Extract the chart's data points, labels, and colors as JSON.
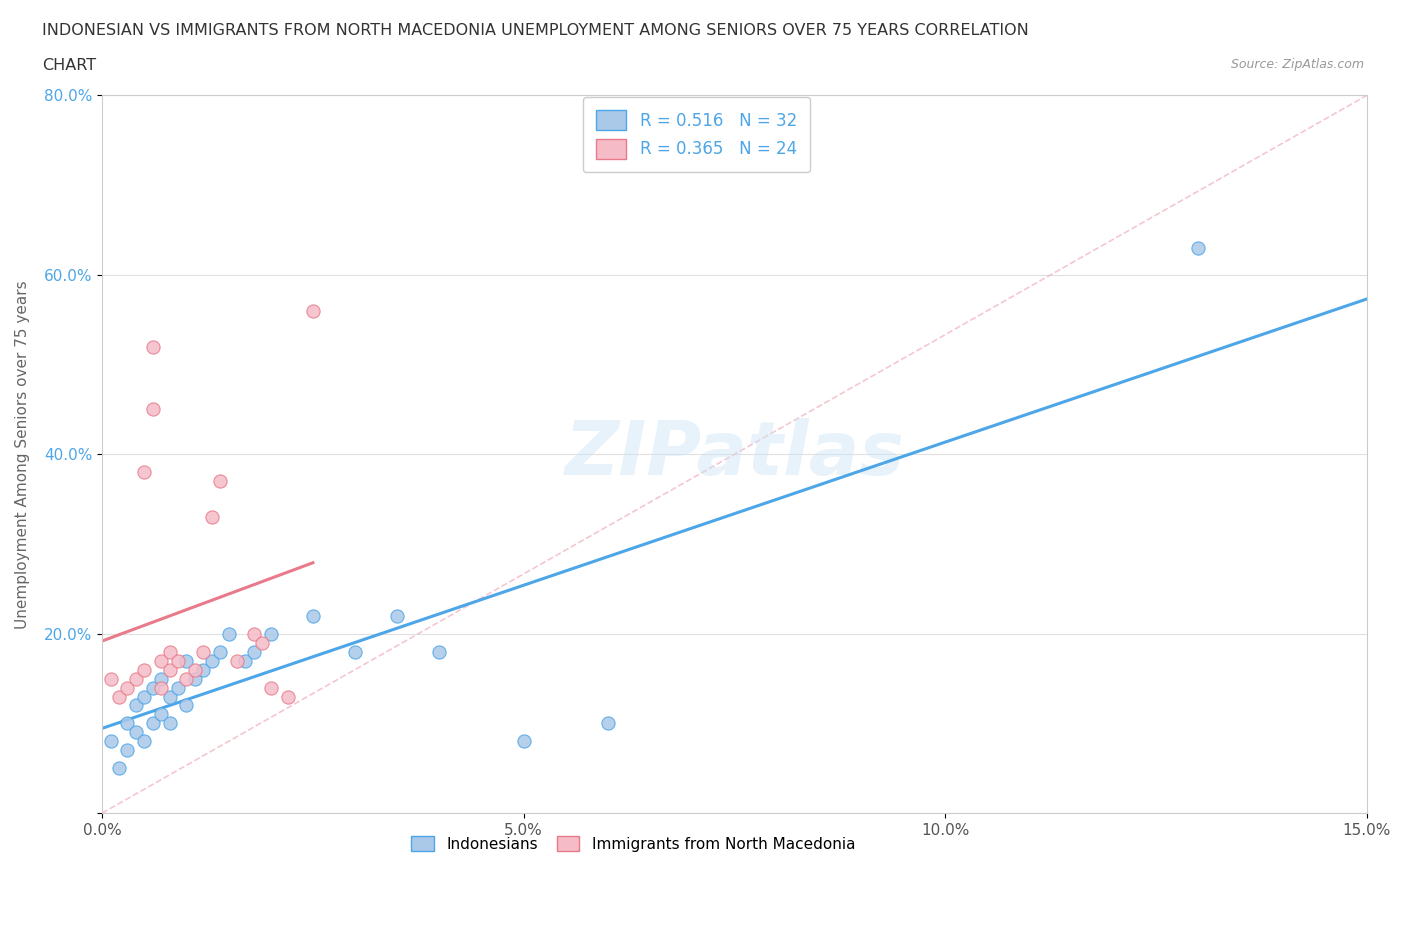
{
  "title_line1": "INDONESIAN VS IMMIGRANTS FROM NORTH MACEDONIA UNEMPLOYMENT AMONG SENIORS OVER 75 YEARS CORRELATION",
  "title_line2": "CHART",
  "source": "Source: ZipAtlas.com",
  "ylabel": "Unemployment Among Seniors over 75 years",
  "xlim": [
    0.0,
    0.15
  ],
  "ylim": [
    0.0,
    0.8
  ],
  "xticks": [
    0.0,
    0.05,
    0.1,
    0.15
  ],
  "xtick_labels": [
    "0.0%",
    "5.0%",
    "10.0%",
    "15.0%"
  ],
  "yticks": [
    0.0,
    0.2,
    0.4,
    0.6,
    0.8
  ],
  "ytick_labels": [
    "",
    "20.0%",
    "40.0%",
    "60.0%",
    "80.0%"
  ],
  "indonesian_x": [
    0.001,
    0.002,
    0.003,
    0.003,
    0.004,
    0.004,
    0.005,
    0.005,
    0.006,
    0.006,
    0.007,
    0.007,
    0.008,
    0.008,
    0.009,
    0.01,
    0.01,
    0.011,
    0.012,
    0.013,
    0.014,
    0.015,
    0.017,
    0.018,
    0.02,
    0.025,
    0.03,
    0.035,
    0.04,
    0.05,
    0.06,
    0.13
  ],
  "indonesian_y": [
    0.08,
    0.05,
    0.07,
    0.1,
    0.09,
    0.12,
    0.08,
    0.13,
    0.1,
    0.14,
    0.11,
    0.15,
    0.1,
    0.13,
    0.14,
    0.12,
    0.17,
    0.15,
    0.16,
    0.17,
    0.18,
    0.2,
    0.17,
    0.18,
    0.2,
    0.22,
    0.18,
    0.22,
    0.18,
    0.08,
    0.1,
    0.63
  ],
  "macedonia_x": [
    0.001,
    0.002,
    0.003,
    0.004,
    0.005,
    0.005,
    0.006,
    0.006,
    0.007,
    0.007,
    0.008,
    0.008,
    0.009,
    0.01,
    0.011,
    0.012,
    0.013,
    0.014,
    0.016,
    0.018,
    0.019,
    0.02,
    0.022,
    0.025
  ],
  "macedonia_y": [
    0.15,
    0.13,
    0.14,
    0.15,
    0.16,
    0.38,
    0.45,
    0.52,
    0.14,
    0.17,
    0.16,
    0.18,
    0.17,
    0.15,
    0.16,
    0.18,
    0.33,
    0.37,
    0.17,
    0.2,
    0.19,
    0.14,
    0.13,
    0.56
  ],
  "R_indonesian": 0.516,
  "N_indonesian": 32,
  "R_macedonia": 0.365,
  "N_macedonia": 24,
  "color_indonesian": "#aac8e8",
  "color_macedonia": "#f5bcc8",
  "trendline_indonesian": "#4da6e8",
  "trendline_macedonia": "#e87a8a",
  "diagonal_color": "#f0b0bc",
  "watermark": "ZIPatlas",
  "legend_label_indonesian": "Indonesians",
  "legend_label_macedonia": "Immigrants from North Macedonia"
}
